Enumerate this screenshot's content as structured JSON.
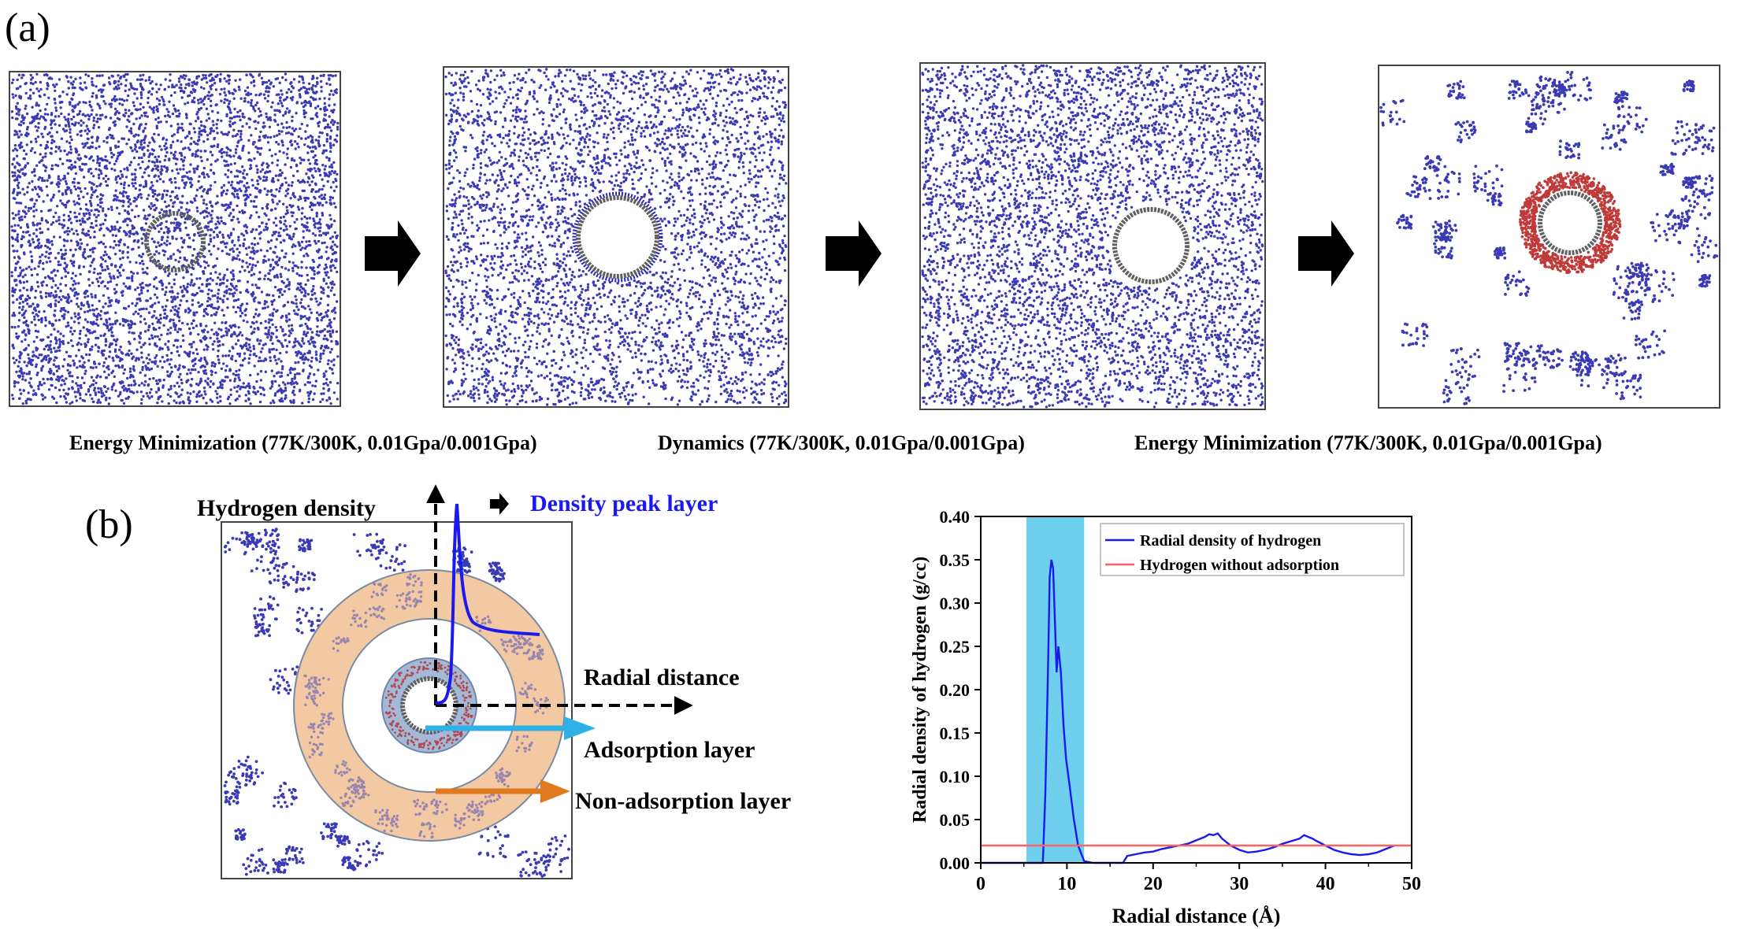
{
  "panel_a": {
    "label": "(a)",
    "captions": [
      "Energy Minimization (77K/300K, 0.01Gpa/0.001Gpa)",
      "Dynamics (77K/300K, 0.01Gpa/0.001Gpa)",
      "Energy Minimization (77K/300K, 0.01Gpa/0.001Gpa)"
    ]
  },
  "panel_b": {
    "label": "(b)",
    "hydrogen_density": "Hydrogen density",
    "density_peak_layer": "Density peak layer",
    "radial_distance": "Radial distance",
    "adsorption_layer": "Adsorption layer",
    "non_adsorption_layer": "Non-adsorption layer"
  },
  "colors": {
    "molecule": "#3a3ab4",
    "adsorbed": "#c03a3a",
    "tube": "#606060",
    "density_line": "#1a1aee",
    "reference_line": "#ff6060",
    "highlight_band": "#6fd0ee",
    "annulus": "#f2c9a3",
    "adsorption_arrow": "#2fb0e6",
    "non_adsorption_arrow": "#e07a1f"
  },
  "chart_data": {
    "type": "line",
    "xlabel": "Radial distance (Å)",
    "ylabel": "Radial density of hydrogen (g/cc)",
    "xlim": [
      0,
      50
    ],
    "ylim": [
      0,
      0.4
    ],
    "xticks": [
      "0",
      "10",
      "20",
      "30",
      "40",
      "50"
    ],
    "yticks": [
      "0.00",
      "0.05",
      "0.10",
      "0.15",
      "0.20",
      "0.25",
      "0.30",
      "0.35",
      "0.40"
    ],
    "legend_position": "top-right",
    "highlight_x_range": [
      5.3,
      12
    ],
    "series": [
      {
        "name": "Radial density of hydrogen",
        "x": [
          0,
          5,
          7.2,
          7.5,
          7.8,
          8.0,
          8.2,
          8.4,
          8.6,
          8.8,
          9.0,
          9.3,
          9.6,
          9.9,
          10.3,
          10.8,
          11.3,
          12.0,
          13,
          15,
          16.5,
          17,
          18,
          19,
          20,
          21,
          22,
          23,
          24,
          25,
          26,
          26.5,
          27,
          27.5,
          28,
          29,
          30,
          31,
          32,
          33,
          34,
          35,
          36,
          37,
          37.5,
          38,
          38.5,
          39,
          40,
          41,
          42,
          43,
          44,
          45,
          46,
          47,
          48
        ],
        "values": [
          0,
          0,
          0,
          0.08,
          0.22,
          0.33,
          0.35,
          0.34,
          0.28,
          0.22,
          0.25,
          0.22,
          0.16,
          0.12,
          0.09,
          0.05,
          0.02,
          0.002,
          0,
          0,
          0,
          0.008,
          0.01,
          0.012,
          0.013,
          0.016,
          0.018,
          0.02,
          0.022,
          0.026,
          0.03,
          0.033,
          0.032,
          0.034,
          0.028,
          0.02,
          0.015,
          0.012,
          0.013,
          0.015,
          0.018,
          0.022,
          0.025,
          0.028,
          0.032,
          0.03,
          0.028,
          0.025,
          0.02,
          0.015,
          0.012,
          0.01,
          0.009,
          0.01,
          0.012,
          0.016,
          0.02
        ]
      },
      {
        "name": "Hydrogen without adsorption",
        "x": [
          0,
          50
        ],
        "values": [
          0.02,
          0.02
        ]
      }
    ]
  }
}
